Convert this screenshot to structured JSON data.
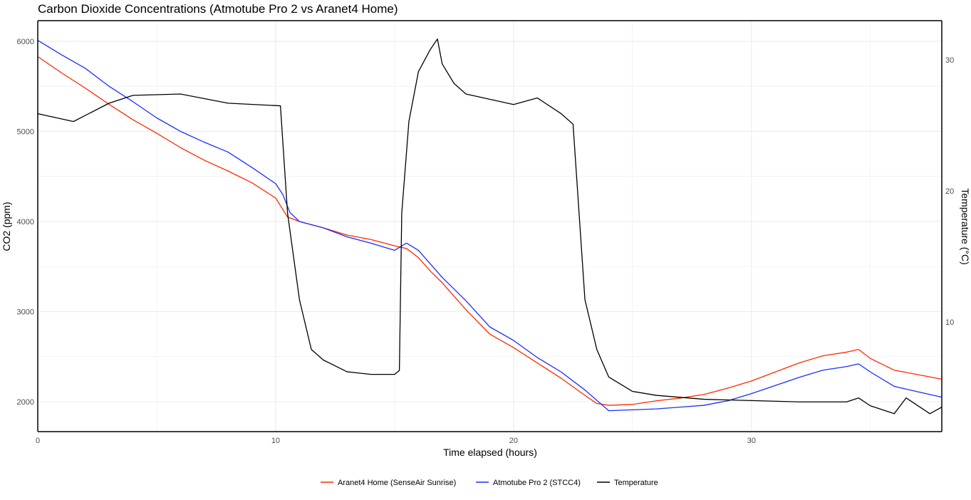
{
  "chart_data": {
    "type": "line",
    "title": "Carbon Dioxide Concentrations (Atmotube Pro 2 vs Aranet4 Home)",
    "xlabel": "Time elapsed (hours)",
    "ylabel": "CO2 (ppm)",
    "y2label": "Temperature (°C)",
    "xlim": [
      0,
      38
    ],
    "ylim": [
      1668,
      6229
    ],
    "y2lim": [
      1.63,
      33.0
    ],
    "xticks": [
      0,
      10,
      20,
      30
    ],
    "yticks": [
      2000,
      3000,
      4000,
      5000,
      6000
    ],
    "y2ticks": [
      10,
      20,
      30
    ],
    "grid": true,
    "legend_position": "bottom",
    "series": [
      {
        "name": "Aranet4 Home (SenseAir Sunrise)",
        "axis": "left",
        "color": "#ff2a00",
        "points": [
          [
            0,
            5830
          ],
          [
            1,
            5650
          ],
          [
            2,
            5480
          ],
          [
            3,
            5300
          ],
          [
            4,
            5130
          ],
          [
            5,
            4980
          ],
          [
            6,
            4820
          ],
          [
            7,
            4680
          ],
          [
            8,
            4560
          ],
          [
            9,
            4430
          ],
          [
            10,
            4260
          ],
          [
            10.5,
            4050
          ],
          [
            11,
            4000
          ],
          [
            12,
            3930
          ],
          [
            13,
            3850
          ],
          [
            14,
            3800
          ],
          [
            15,
            3730
          ],
          [
            15.5,
            3700
          ],
          [
            16,
            3600
          ],
          [
            16.5,
            3450
          ],
          [
            17,
            3320
          ],
          [
            18,
            3020
          ],
          [
            19,
            2750
          ],
          [
            20,
            2600
          ],
          [
            21,
            2430
          ],
          [
            22,
            2260
          ],
          [
            23,
            2070
          ],
          [
            23.5,
            1980
          ],
          [
            24,
            1960
          ],
          [
            25,
            1970
          ],
          [
            26,
            2010
          ],
          [
            27,
            2040
          ],
          [
            28,
            2080
          ],
          [
            29,
            2150
          ],
          [
            30,
            2230
          ],
          [
            31,
            2330
          ],
          [
            32,
            2430
          ],
          [
            33,
            2510
          ],
          [
            34,
            2550
          ],
          [
            34.5,
            2580
          ],
          [
            35,
            2480
          ],
          [
            36,
            2350
          ],
          [
            37,
            2300
          ],
          [
            38,
            2250
          ]
        ]
      },
      {
        "name": "Atmotube Pro 2 (STCC4)",
        "axis": "left",
        "color": "#1a2eff",
        "points": [
          [
            0,
            6010
          ],
          [
            1,
            5850
          ],
          [
            2,
            5700
          ],
          [
            3,
            5500
          ],
          [
            4,
            5330
          ],
          [
            5,
            5150
          ],
          [
            6,
            5000
          ],
          [
            7,
            4880
          ],
          [
            8,
            4770
          ],
          [
            9,
            4600
          ],
          [
            10,
            4420
          ],
          [
            10.3,
            4300
          ],
          [
            10.6,
            4100
          ],
          [
            11,
            4000
          ],
          [
            12,
            3930
          ],
          [
            13,
            3830
          ],
          [
            14,
            3760
          ],
          [
            15,
            3680
          ],
          [
            15.5,
            3760
          ],
          [
            16,
            3680
          ],
          [
            17,
            3380
          ],
          [
            18,
            3120
          ],
          [
            19,
            2830
          ],
          [
            20,
            2680
          ],
          [
            21,
            2490
          ],
          [
            22,
            2330
          ],
          [
            23,
            2130
          ],
          [
            24,
            1900
          ],
          [
            25,
            1910
          ],
          [
            26,
            1920
          ],
          [
            27,
            1940
          ],
          [
            28,
            1960
          ],
          [
            29,
            2010
          ],
          [
            30,
            2090
          ],
          [
            31,
            2180
          ],
          [
            32,
            2270
          ],
          [
            33,
            2350
          ],
          [
            34,
            2390
          ],
          [
            34.5,
            2420
          ],
          [
            35,
            2330
          ],
          [
            36,
            2170
          ],
          [
            37,
            2110
          ],
          [
            38,
            2050
          ]
        ]
      },
      {
        "name": "Temperature",
        "axis": "right",
        "color": "#000000",
        "points": [
          [
            0,
            25.9
          ],
          [
            1.5,
            25.3
          ],
          [
            3,
            26.7
          ],
          [
            4,
            27.3
          ],
          [
            6,
            27.4
          ],
          [
            8,
            26.7
          ],
          [
            10.2,
            26.5
          ],
          [
            10.5,
            18.3
          ],
          [
            11,
            11.7
          ],
          [
            11.5,
            7.9
          ],
          [
            12,
            7.1
          ],
          [
            13,
            6.2
          ],
          [
            14,
            6.0
          ],
          [
            15,
            6.0
          ],
          [
            15.2,
            6.3
          ],
          [
            15.3,
            18.3
          ],
          [
            15.6,
            25.3
          ],
          [
            16,
            29.1
          ],
          [
            16.5,
            30.8
          ],
          [
            16.8,
            31.6
          ],
          [
            17,
            29.7
          ],
          [
            17.5,
            28.2
          ],
          [
            18,
            27.4
          ],
          [
            19,
            27.0
          ],
          [
            20,
            26.6
          ],
          [
            21,
            27.1
          ],
          [
            22,
            25.9
          ],
          [
            22.5,
            25.1
          ],
          [
            23,
            11.7
          ],
          [
            23.5,
            7.9
          ],
          [
            24,
            5.8
          ],
          [
            25,
            4.7
          ],
          [
            26,
            4.4
          ],
          [
            28,
            4.1
          ],
          [
            30,
            4.0
          ],
          [
            32,
            3.9
          ],
          [
            34,
            3.9
          ],
          [
            34.5,
            4.2
          ],
          [
            35,
            3.6
          ],
          [
            36,
            3.0
          ],
          [
            36.5,
            4.2
          ],
          [
            37.5,
            3.0
          ],
          [
            38,
            3.5
          ]
        ]
      }
    ]
  }
}
